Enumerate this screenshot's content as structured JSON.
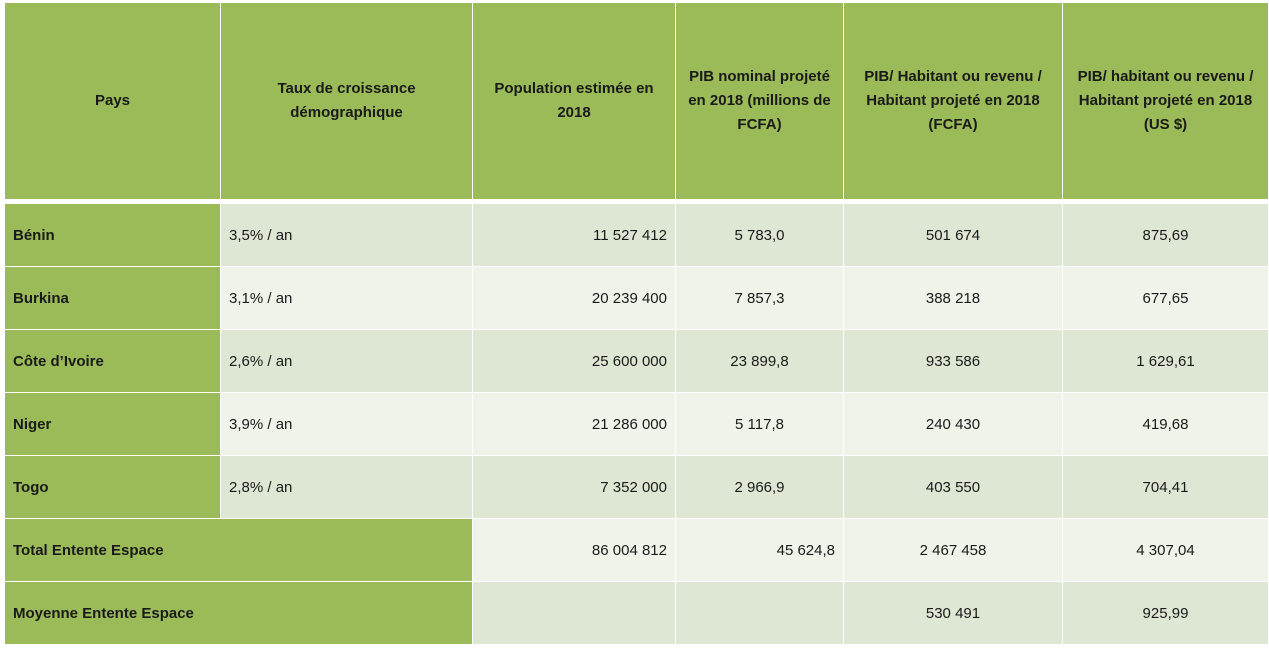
{
  "table": {
    "headers": [
      "Pays",
      "Taux de croissance démographique",
      "Population  estimée en 2018",
      "PIB nominal  projeté en 2018 (millions  de FCFA)",
      "PIB/ Habitant  ou revenu / Habitant  projeté en 2018 (FCFA)",
      "PIB/ habitant ou revenu / Habitant projeté en 2018 (US $)"
    ],
    "rows": [
      {
        "pays": "Bénin",
        "taux": "3,5% / an",
        "population": "11 527 412",
        "pib": "5 783,0",
        "pib_hab_fcfa": "501 674",
        "pib_hab_usd": "875,69"
      },
      {
        "pays": "Burkina",
        "taux": "3,1% / an",
        "population": "20 239 400",
        "pib": "7 857,3",
        "pib_hab_fcfa": "388 218",
        "pib_hab_usd": "677,65"
      },
      {
        "pays": "Côte d’Ivoire",
        "taux": "2,6% / an",
        "population": "25 600 000",
        "pib": "23 899,8",
        "pib_hab_fcfa": "933 586",
        "pib_hab_usd": "1 629,61"
      },
      {
        "pays": "Niger",
        "taux": "3,9% / an",
        "population": "21 286 000",
        "pib": "5 117,8",
        "pib_hab_fcfa": "240 430",
        "pib_hab_usd": "419,68"
      },
      {
        "pays": "Togo",
        "taux": "2,8% / an",
        "population": "7 352 000",
        "pib": "2 966,9",
        "pib_hab_fcfa": "403 550",
        "pib_hab_usd": "704,41"
      }
    ],
    "total": {
      "label": "Total Entente Espace",
      "population": "86 004 812",
      "pib": "45 624,8",
      "pib_hab_fcfa": "2 467 458",
      "pib_hab_usd": "4 307,04"
    },
    "moyenne": {
      "label": "Moyenne Entente Espace",
      "population": "",
      "pib": "",
      "pib_hab_fcfa": "530 491",
      "pib_hab_usd": "925,99"
    }
  },
  "colors": {
    "header_green": "#9bbb59",
    "row_dark": "#dde7d3",
    "row_light": "#eff3ea"
  }
}
